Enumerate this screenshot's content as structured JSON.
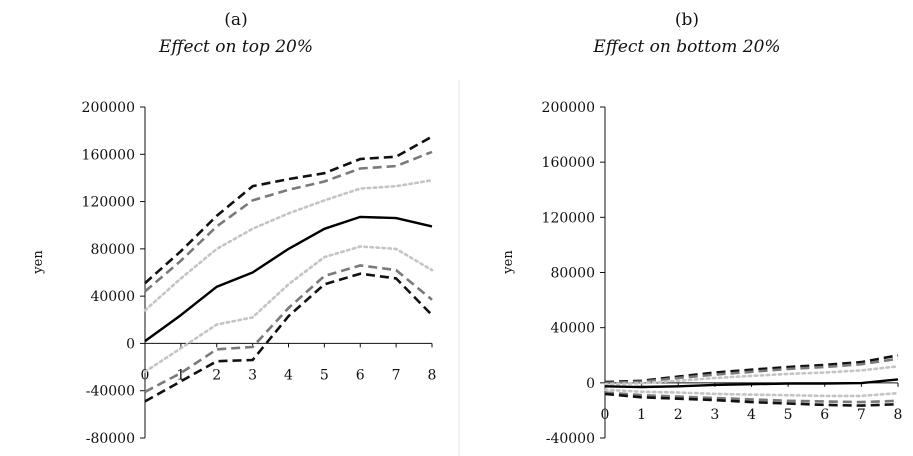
{
  "chart_data": [
    {
      "type": "line",
      "panel_label": "(a)",
      "title": "Effect on top 20%",
      "ylabel": "yen",
      "xlabel": "",
      "x": [
        0,
        1,
        2,
        3,
        4,
        5,
        6,
        7,
        8
      ],
      "ylim": [
        -80000,
        200000
      ],
      "yticks": [
        200000,
        160000,
        120000,
        80000,
        40000,
        0,
        -40000,
        -80000
      ],
      "xticks": [
        0,
        1,
        2,
        3,
        4,
        5,
        6,
        7,
        8
      ],
      "grid": false,
      "series": [
        {
          "style": "dashed",
          "color": "#111111",
          "values": [
            51000,
            78000,
            108000,
            133000,
            139000,
            144000,
            156000,
            158000,
            175000
          ]
        },
        {
          "style": "dashed",
          "color": "#7a7a7a",
          "values": [
            44000,
            70000,
            99000,
            121000,
            130000,
            137000,
            148000,
            150000,
            162000
          ]
        },
        {
          "style": "dotted",
          "color": "#c4c4c4",
          "values": [
            28000,
            55000,
            80000,
            97000,
            110000,
            121000,
            131000,
            133000,
            138000
          ]
        },
        {
          "style": "solid",
          "color": "#000000",
          "values": [
            2000,
            24000,
            48000,
            60000,
            80000,
            97000,
            107000,
            106000,
            99000
          ]
        },
        {
          "style": "dotted",
          "color": "#c4c4c4",
          "values": [
            -24000,
            -4000,
            16000,
            22000,
            50000,
            73000,
            82000,
            80000,
            62000
          ]
        },
        {
          "style": "dashed",
          "color": "#7a7a7a",
          "values": [
            -41000,
            -25000,
            -5000,
            -3000,
            30000,
            57000,
            66000,
            62000,
            37000
          ]
        },
        {
          "style": "dashed",
          "color": "#111111",
          "values": [
            -49000,
            -32000,
            -15000,
            -14000,
            23000,
            50000,
            59000,
            55000,
            24000
          ]
        }
      ]
    },
    {
      "type": "line",
      "panel_label": "(b)",
      "title": "Effect on bottom 20%",
      "ylabel": "yen",
      "xlabel": "",
      "x": [
        0,
        1,
        2,
        3,
        4,
        5,
        6,
        7,
        8
      ],
      "ylim": [
        -40000,
        200000
      ],
      "yticks": [
        200000,
        160000,
        120000,
        80000,
        40000,
        0,
        -40000
      ],
      "xticks": [
        0,
        1,
        2,
        3,
        4,
        5,
        6,
        7,
        8
      ],
      "grid": false,
      "series": [
        {
          "style": "dashed",
          "color": "#111111",
          "values": [
            500,
            1500,
            4500,
            7500,
            9500,
            11500,
            13000,
            15000,
            20000
          ]
        },
        {
          "style": "dashed",
          "color": "#7a7a7a",
          "values": [
            -200,
            800,
            3500,
            6000,
            8000,
            10000,
            11500,
            13500,
            17500
          ]
        },
        {
          "style": "dotted",
          "color": "#c4c4c4",
          "values": [
            -1000,
            -300,
            1500,
            3500,
            5000,
            6500,
            7500,
            9000,
            12000
          ]
        },
        {
          "style": "solid",
          "color": "#000000",
          "values": [
            -2500,
            -3000,
            -2500,
            -1500,
            -1000,
            -500,
            -500,
            -200,
            2500
          ]
        },
        {
          "style": "dotted",
          "color": "#c4c4c4",
          "values": [
            -5000,
            -6500,
            -7000,
            -8000,
            -8500,
            -9000,
            -9500,
            -9500,
            -7500
          ]
        },
        {
          "style": "dashed",
          "color": "#7a7a7a",
          "values": [
            -7000,
            -9000,
            -10000,
            -11000,
            -12000,
            -13000,
            -13500,
            -14000,
            -13000
          ]
        },
        {
          "style": "dashed",
          "color": "#111111",
          "values": [
            -8000,
            -10500,
            -11500,
            -12500,
            -14000,
            -15000,
            -16000,
            -16500,
            -15500
          ]
        }
      ]
    }
  ]
}
